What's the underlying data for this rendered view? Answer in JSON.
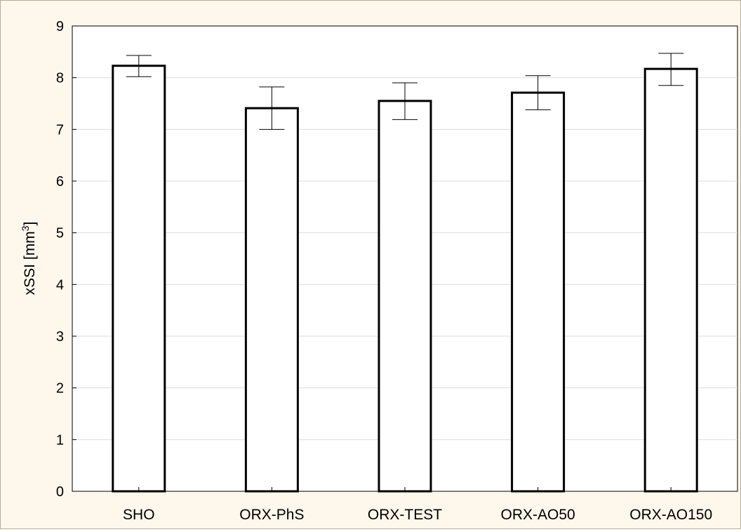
{
  "chart_data": {
    "type": "bar",
    "categories": [
      "SHO",
      "ORX-PhS",
      "ORX-TEST",
      "ORX-AO50",
      "ORX-AO150"
    ],
    "values": [
      8.23,
      7.41,
      7.55,
      7.71,
      8.17
    ],
    "error_low": [
      8.02,
      7.0,
      7.19,
      7.38,
      7.85
    ],
    "error_high": [
      8.43,
      7.82,
      7.9,
      8.04,
      8.47
    ],
    "ylim": [
      0,
      9
    ],
    "yticks": [
      "0",
      "1",
      "2",
      "3",
      "4",
      "5",
      "6",
      "7",
      "8",
      "9"
    ],
    "ylabel": "xSSI [mm",
    "ylabel_superscript": "3",
    "ylabel_suffix": "]",
    "xlabel": "",
    "grid": "horizontal",
    "bar_fill": "#ffffff",
    "bar_edge": "#000000",
    "frame_background": "#fdf7ec",
    "gridline_color": "#dddddd"
  }
}
